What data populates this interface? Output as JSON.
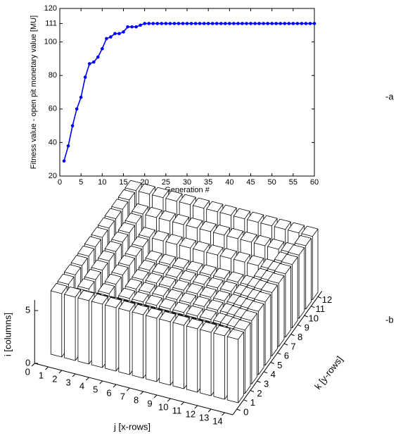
{
  "chart_data": [
    {
      "type": "line",
      "label": "-a",
      "xlabel": "Generation #",
      "ylabel": "Fitness value - open pit monetary value [MU]",
      "x": [
        1,
        2,
        3,
        4,
        5,
        6,
        7,
        8,
        9,
        10,
        11,
        12,
        13,
        14,
        15,
        16,
        17,
        18,
        19,
        20,
        21,
        22,
        23,
        24,
        25,
        26,
        27,
        28,
        29,
        30,
        31,
        32,
        33,
        34,
        35,
        36,
        37,
        38,
        39,
        40,
        41,
        42,
        43,
        44,
        45,
        46,
        47,
        48,
        49,
        50,
        51,
        52,
        53,
        54,
        55,
        56,
        57,
        58,
        59,
        60
      ],
      "values": [
        29,
        38,
        50,
        60,
        67,
        79,
        87,
        88,
        91,
        96,
        102,
        103,
        105,
        105,
        106,
        109,
        109,
        109,
        110,
        111,
        111,
        111,
        111,
        111,
        111,
        111,
        111,
        111,
        111,
        111,
        111,
        111,
        111,
        111,
        111,
        111,
        111,
        111,
        111,
        111,
        111,
        111,
        111,
        111,
        111,
        111,
        111,
        111,
        111,
        111,
        111,
        111,
        111,
        111,
        111,
        111,
        111,
        111,
        111,
        111
      ],
      "color": "#0000ff",
      "xlim": [
        0,
        60
      ],
      "xticks": [
        0,
        5,
        10,
        15,
        20,
        25,
        30,
        35,
        40,
        45,
        50,
        55,
        60
      ],
      "ylim": [
        20,
        120
      ],
      "yticks": [
        20,
        40,
        60,
        80,
        100,
        111,
        120
      ]
    },
    {
      "type": "bar3d",
      "label": "-b",
      "xlabel": "j [x-rows]",
      "ylabel": "k [y-rows]",
      "zlabel": "i [columns]",
      "x": [
        1,
        2,
        3,
        4,
        5,
        6,
        7,
        8,
        9,
        10,
        11,
        12,
        13,
        14
      ],
      "y": [
        1,
        2,
        3,
        4,
        5,
        6,
        7,
        8,
        9,
        10,
        11,
        12
      ],
      "values": [
        [
          6,
          6,
          6,
          6,
          6,
          6,
          6,
          6,
          6,
          6,
          6,
          6,
          6,
          6
        ],
        [
          6,
          5,
          5,
          5,
          5,
          5,
          5,
          5,
          5,
          5,
          5,
          5,
          5,
          6
        ],
        [
          6,
          5,
          4,
          4,
          4,
          4,
          4,
          4,
          4,
          4,
          4,
          4,
          5,
          6
        ],
        [
          6,
          5,
          4,
          3,
          3,
          3,
          3,
          3,
          3,
          3,
          3,
          4,
          5,
          6
        ],
        [
          6,
          5,
          4,
          3,
          3,
          3,
          3,
          3,
          3,
          3,
          3,
          4,
          5,
          6
        ],
        [
          6,
          5,
          4,
          3,
          3,
          3,
          3,
          3,
          3,
          3,
          3,
          4,
          5,
          6
        ],
        [
          6,
          5,
          4,
          3,
          3,
          3,
          3,
          3,
          3,
          3,
          3,
          4,
          5,
          6
        ],
        [
          6,
          5,
          4,
          3,
          3,
          3,
          3,
          3,
          3,
          3,
          3,
          4,
          5,
          6
        ],
        [
          6,
          5,
          4,
          3,
          3,
          3,
          3,
          3,
          3,
          3,
          3,
          4,
          5,
          6
        ],
        [
          6,
          5,
          4,
          4,
          4,
          4,
          4,
          4,
          4,
          4,
          4,
          4,
          5,
          6
        ],
        [
          6,
          5,
          5,
          5,
          5,
          5,
          5,
          5,
          5,
          5,
          5,
          5,
          5,
          6
        ],
        [
          6,
          6,
          6,
          6,
          6,
          6,
          6,
          6,
          6,
          6,
          6,
          6,
          6,
          6
        ]
      ],
      "xticks": [
        0,
        1,
        2,
        3,
        4,
        5,
        6,
        7,
        8,
        9,
        10,
        11,
        12,
        13,
        14
      ],
      "yticks": [
        0,
        1,
        2,
        3,
        4,
        5,
        6,
        7,
        8,
        9,
        10,
        11,
        12
      ],
      "zlim": [
        0,
        6
      ],
      "zticks": [
        0,
        5
      ]
    }
  ]
}
